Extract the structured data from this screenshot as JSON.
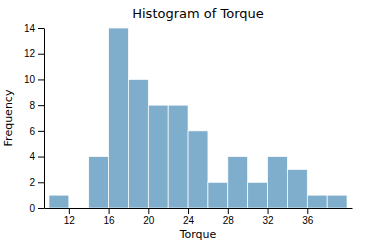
{
  "chart_data": {
    "type": "histogram",
    "title": "Histogram of Torque",
    "xlabel": "Torque",
    "ylabel": "Frequency",
    "bins": [
      10,
      12,
      14,
      16,
      18,
      20,
      22,
      24,
      26,
      28,
      30,
      32,
      34,
      36,
      38,
      40
    ],
    "values": [
      1,
      0,
      4,
      14,
      10,
      8,
      8,
      6,
      2,
      4,
      2,
      4,
      3,
      1,
      1
    ],
    "color": "#7faecc",
    "xlim": [
      9.5,
      40.5
    ],
    "xticks": [
      12,
      16,
      20,
      24,
      28,
      32,
      36
    ],
    "ylim": [
      0,
      14
    ],
    "yticks": [
      0,
      2,
      4,
      6,
      8,
      10,
      12,
      14
    ],
    "grid": false
  }
}
